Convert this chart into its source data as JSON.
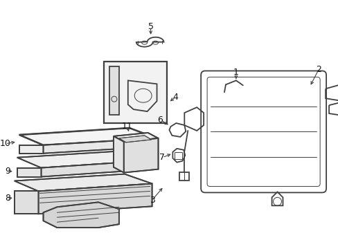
{
  "background_color": "#ffffff",
  "line_color": "#404040",
  "label_color": "#111111",
  "figsize": [
    4.89,
    3.6
  ],
  "dpi": 100,
  "lw_main": 1.3,
  "lw_thin": 0.7,
  "lw_thick": 1.8,
  "font_size": 9
}
